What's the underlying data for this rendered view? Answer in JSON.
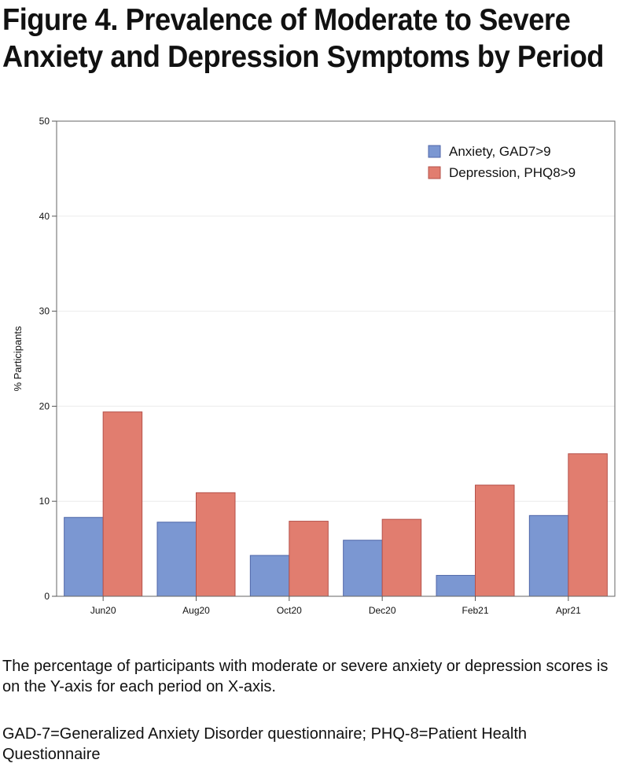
{
  "figure": {
    "title_line1": "Figure 4. Prevalence of Moderate to Severe",
    "title_line2": "Anxiety and Depression Symptoms by Period"
  },
  "caption": {
    "description": "The percentage of participants with moderate or severe anxiety or depression scores is on the Y-axis for each period on X-axis.",
    "abbreviations": "GAD-7=Generalized Anxiety Disorder questionnaire; PHQ-8=Patient Health Questionnaire"
  },
  "colors": {
    "anxiety": "#7b97d2",
    "depression": "#e17d6f",
    "anxiety_edge": "#4f66a8",
    "depression_edge": "#b5514a"
  },
  "chart_data": {
    "type": "bar",
    "title": "",
    "xlabel": "",
    "ylabel": "% Participants",
    "ylim": [
      0,
      50
    ],
    "yticks": [
      0,
      10,
      20,
      30,
      40,
      50
    ],
    "grid": true,
    "legend_position": "top-right",
    "categories": [
      "Jun20",
      "Aug20",
      "Oct20",
      "Dec20",
      "Feb21",
      "Apr21"
    ],
    "series": [
      {
        "name": "Anxiety, GAD7>9",
        "values": [
          8.3,
          7.8,
          4.3,
          5.9,
          2.2,
          8.5
        ]
      },
      {
        "name": "Depression, PHQ8>9",
        "values": [
          19.4,
          10.9,
          7.9,
          8.1,
          11.7,
          15.0
        ]
      }
    ]
  }
}
